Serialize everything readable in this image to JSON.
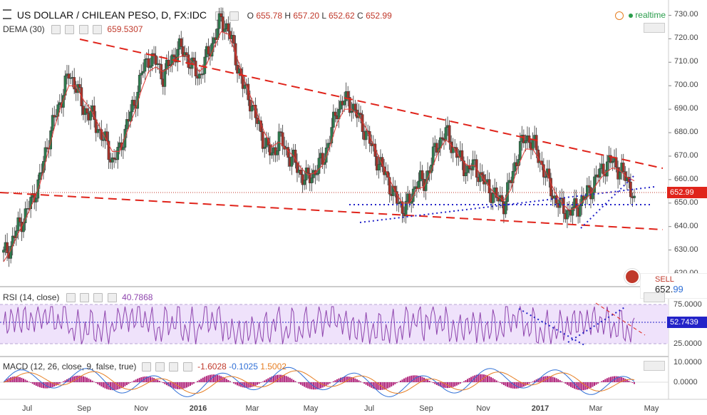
{
  "header": {
    "symbol": "US DOLLAR / CHILEAN PESO, D, FX:IDC",
    "open_label": "O",
    "open": "655.78",
    "high_label": "H",
    "high": "657.20",
    "low_label": "L",
    "low": "652.62",
    "close_label": "C",
    "close": "652.99",
    "realtime": "realtime"
  },
  "dema": {
    "label": "DEMA (30)",
    "value": "659.5307"
  },
  "rsi": {
    "label": "RSI (14, close)",
    "value": "40.7868",
    "axis_labels": [
      "75.0000",
      "25.0000"
    ],
    "tag": "52.7439"
  },
  "macd": {
    "label": "MACD (12, 26, close, 9, false, true)",
    "v1": "-1.6028",
    "v2": "-0.1025",
    "v3": "1.5002",
    "axis_labels": [
      "10.0000",
      "0.0000"
    ]
  },
  "price_axis": [
    "730.00",
    "720.00",
    "710.00",
    "700.00",
    "690.00",
    "680.00",
    "670.00",
    "660.00",
    "650.00",
    "640.00",
    "630.00",
    "620.00"
  ],
  "price_tag": "652.99",
  "sell": {
    "label": "SELL",
    "price_main": "652.",
    "price_small": "99"
  },
  "time_axis": [
    "Jul",
    "Sep",
    "Nov",
    "2016",
    "Mar",
    "May",
    "Jul",
    "Sep",
    "Nov",
    "2017",
    "Mar",
    "May"
  ],
  "colors": {
    "up": "#2e7d4f",
    "down": "#a7332a",
    "dema": "#e53935",
    "trend": "#e0241b",
    "dotted": "#2323c8",
    "rsi": "#8e44ad",
    "rsi_band": "#efe2fb"
  },
  "chart_data": {
    "type": "candlestick",
    "title": "US DOLLAR / CHILEAN PESO, D, FX:IDC",
    "ylim": [
      615,
      735
    ],
    "x_ticks": [
      "Jul",
      "Sep",
      "Nov",
      "2016",
      "Mar",
      "May",
      "Jul",
      "Sep",
      "Nov",
      "2017",
      "Mar",
      "May"
    ],
    "close_series": [
      628,
      632,
      640,
      645,
      652,
      660,
      675,
      686,
      695,
      705,
      700,
      690,
      688,
      682,
      676,
      668,
      672,
      684,
      692,
      705,
      712,
      710,
      704,
      710,
      716,
      714,
      708,
      704,
      712,
      720,
      728,
      724,
      712,
      700,
      694,
      684,
      676,
      670,
      678,
      672,
      668,
      662,
      660,
      664,
      668,
      678,
      690,
      694,
      692,
      686,
      680,
      672,
      666,
      660,
      652,
      648,
      650,
      660,
      658,
      668,
      676,
      680,
      674,
      668,
      664,
      666,
      660,
      656,
      652,
      650,
      660,
      672,
      678,
      676,
      668,
      660,
      652,
      648,
      646,
      648,
      652,
      656,
      662,
      666,
      668,
      664,
      660,
      653
    ],
    "dema_series": [
      625,
      630,
      637,
      643,
      650,
      658,
      670,
      682,
      692,
      700,
      700,
      694,
      690,
      684,
      678,
      672,
      672,
      680,
      688,
      698,
      706,
      708,
      706,
      708,
      712,
      713,
      710,
      706,
      709,
      716,
      723,
      722,
      714,
      704,
      696,
      688,
      680,
      674,
      676,
      673,
      670,
      665,
      662,
      663,
      666,
      674,
      684,
      690,
      690,
      687,
      682,
      675,
      668,
      662,
      655,
      650,
      650,
      656,
      657,
      664,
      672,
      677,
      674,
      669,
      666,
      666,
      661,
      657,
      653,
      651,
      656,
      666,
      673,
      673,
      668,
      662,
      655,
      650,
      647,
      648,
      651,
      654,
      659,
      663,
      665,
      664,
      661,
      659.5
    ]
  }
}
